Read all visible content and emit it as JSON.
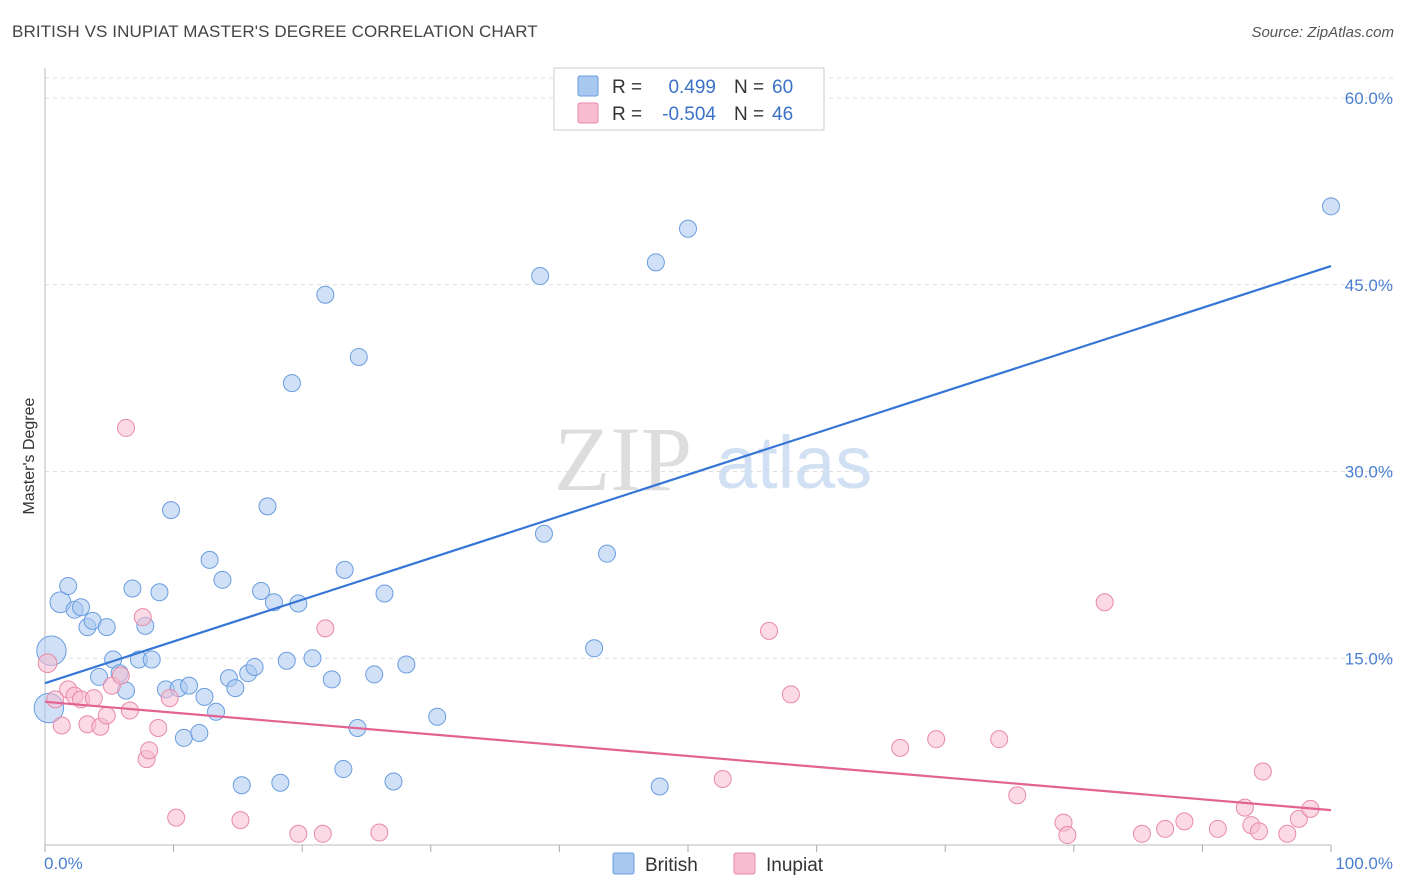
{
  "header": {
    "title": "BRITISH VS INUPIAT MASTER'S DEGREE CORRELATION CHART",
    "source": "Source: ZipAtlas.com"
  },
  "watermark": {
    "zip": "ZIP",
    "atlas": "atlas"
  },
  "colors": {
    "british_fill": "#a9c8f0",
    "british_stroke": "#6a9de0",
    "british_line": "#3676d6",
    "inupiat_fill": "#f7bcd0",
    "inupiat_stroke": "#e88aa8",
    "inupiat_line": "#e26393",
    "axis_label": "#4a7fd0",
    "grid": "#dddddd"
  },
  "legend": {
    "rows": [
      {
        "r_label": "R =",
        "r_value": "0.499",
        "n_label": "N =",
        "n_value": "60"
      },
      {
        "r_label": "R =",
        "r_value": "-0.504",
        "n_label": "N =",
        "n_value": "46"
      }
    ]
  },
  "chart_data": {
    "type": "scatter",
    "title": "BRITISH VS INUPIAT MASTER'S DEGREE CORRELATION CHART",
    "xlabel": "",
    "ylabel": "Master's Degree",
    "xlim": [
      0,
      100
    ],
    "ylim": [
      0,
      60
    ],
    "x_tick_labels": [
      "0.0%",
      "100.0%"
    ],
    "y_ticks": [
      15,
      30,
      45,
      60
    ],
    "y_tick_labels": [
      "15.0%",
      "30.0%",
      "45.0%",
      "60.0%"
    ],
    "grid": true,
    "legend_position": "top-center",
    "series": [
      {
        "name": "British",
        "r": 0.499,
        "n": 60,
        "trend": {
          "x": [
            0,
            100
          ],
          "y": [
            13.0,
            46.5
          ]
        },
        "points": [
          {
            "x": 0.5,
            "y": 15.6,
            "s": 3
          },
          {
            "x": 0.3,
            "y": 11.0,
            "s": 3
          },
          {
            "x": 1.2,
            "y": 19.5,
            "s": 1.5
          },
          {
            "x": 1.8,
            "y": 20.8,
            "s": 1
          },
          {
            "x": 2.3,
            "y": 18.9,
            "s": 1
          },
          {
            "x": 2.8,
            "y": 19.1,
            "s": 1
          },
          {
            "x": 3.3,
            "y": 17.5,
            "s": 1
          },
          {
            "x": 3.7,
            "y": 18.0,
            "s": 1
          },
          {
            "x": 4.2,
            "y": 13.5,
            "s": 1
          },
          {
            "x": 4.8,
            "y": 17.5,
            "s": 1
          },
          {
            "x": 5.3,
            "y": 14.9,
            "s": 1
          },
          {
            "x": 5.8,
            "y": 13.8,
            "s": 1
          },
          {
            "x": 6.3,
            "y": 12.4,
            "s": 1
          },
          {
            "x": 6.8,
            "y": 20.6,
            "s": 1
          },
          {
            "x": 7.3,
            "y": 14.9,
            "s": 1
          },
          {
            "x": 7.8,
            "y": 17.6,
            "s": 1
          },
          {
            "x": 8.3,
            "y": 14.9,
            "s": 1
          },
          {
            "x": 8.9,
            "y": 20.3,
            "s": 1
          },
          {
            "x": 9.4,
            "y": 12.5,
            "s": 1
          },
          {
            "x": 9.8,
            "y": 26.9,
            "s": 1
          },
          {
            "x": 10.4,
            "y": 12.6,
            "s": 1
          },
          {
            "x": 10.8,
            "y": 8.6,
            "s": 1
          },
          {
            "x": 11.2,
            "y": 12.8,
            "s": 1
          },
          {
            "x": 12.0,
            "y": 9.0,
            "s": 1
          },
          {
            "x": 12.4,
            "y": 11.9,
            "s": 1
          },
          {
            "x": 12.8,
            "y": 22.9,
            "s": 1
          },
          {
            "x": 13.3,
            "y": 10.7,
            "s": 1
          },
          {
            "x": 13.8,
            "y": 21.3,
            "s": 1
          },
          {
            "x": 14.3,
            "y": 13.4,
            "s": 1
          },
          {
            "x": 14.8,
            "y": 12.6,
            "s": 1
          },
          {
            "x": 15.3,
            "y": 4.8,
            "s": 1
          },
          {
            "x": 15.8,
            "y": 13.8,
            "s": 1
          },
          {
            "x": 16.3,
            "y": 14.3,
            "s": 1
          },
          {
            "x": 16.8,
            "y": 20.4,
            "s": 1
          },
          {
            "x": 17.3,
            "y": 27.2,
            "s": 1
          },
          {
            "x": 17.8,
            "y": 19.5,
            "s": 1
          },
          {
            "x": 18.3,
            "y": 5.0,
            "s": 1
          },
          {
            "x": 18.8,
            "y": 14.8,
            "s": 1
          },
          {
            "x": 19.2,
            "y": 37.1,
            "s": 1
          },
          {
            "x": 19.7,
            "y": 19.4,
            "s": 1
          },
          {
            "x": 20.8,
            "y": 15.0,
            "s": 1
          },
          {
            "x": 21.8,
            "y": 44.2,
            "s": 1
          },
          {
            "x": 22.3,
            "y": 13.3,
            "s": 1
          },
          {
            "x": 23.2,
            "y": 6.1,
            "s": 1
          },
          {
            "x": 23.3,
            "y": 22.1,
            "s": 1
          },
          {
            "x": 24.3,
            "y": 9.4,
            "s": 1
          },
          {
            "x": 24.4,
            "y": 39.2,
            "s": 1
          },
          {
            "x": 25.6,
            "y": 13.7,
            "s": 1
          },
          {
            "x": 26.4,
            "y": 20.2,
            "s": 1
          },
          {
            "x": 27.1,
            "y": 5.1,
            "s": 1
          },
          {
            "x": 28.1,
            "y": 14.5,
            "s": 1
          },
          {
            "x": 30.5,
            "y": 10.3,
            "s": 1
          },
          {
            "x": 38.5,
            "y": 45.7,
            "s": 1
          },
          {
            "x": 38.8,
            "y": 25.0,
            "s": 1
          },
          {
            "x": 42.7,
            "y": 15.8,
            "s": 1
          },
          {
            "x": 43.7,
            "y": 23.4,
            "s": 1
          },
          {
            "x": 47.5,
            "y": 46.8,
            "s": 1
          },
          {
            "x": 47.8,
            "y": 4.7,
            "s": 1
          },
          {
            "x": 50.0,
            "y": 49.5,
            "s": 1
          },
          {
            "x": 100.0,
            "y": 51.3,
            "s": 1
          }
        ]
      },
      {
        "name": "Inupiat",
        "r": -0.504,
        "n": 46,
        "trend": {
          "x": [
            0,
            100
          ],
          "y": [
            11.5,
            2.8
          ]
        },
        "points": [
          {
            "x": 0.2,
            "y": 14.6,
            "s": 1.2
          },
          {
            "x": 0.8,
            "y": 11.7,
            "s": 1
          },
          {
            "x": 1.3,
            "y": 9.6,
            "s": 1
          },
          {
            "x": 1.8,
            "y": 12.5,
            "s": 1
          },
          {
            "x": 2.3,
            "y": 12.0,
            "s": 1
          },
          {
            "x": 2.8,
            "y": 11.7,
            "s": 1
          },
          {
            "x": 3.3,
            "y": 9.7,
            "s": 1
          },
          {
            "x": 3.8,
            "y": 11.8,
            "s": 1
          },
          {
            "x": 4.3,
            "y": 9.5,
            "s": 1
          },
          {
            "x": 4.8,
            "y": 10.4,
            "s": 1
          },
          {
            "x": 5.2,
            "y": 12.8,
            "s": 1
          },
          {
            "x": 5.9,
            "y": 13.6,
            "s": 1
          },
          {
            "x": 6.3,
            "y": 33.5,
            "s": 1
          },
          {
            "x": 6.6,
            "y": 10.8,
            "s": 1
          },
          {
            "x": 7.6,
            "y": 18.3,
            "s": 1
          },
          {
            "x": 7.9,
            "y": 6.9,
            "s": 1
          },
          {
            "x": 8.1,
            "y": 7.6,
            "s": 1
          },
          {
            "x": 8.8,
            "y": 9.4,
            "s": 1
          },
          {
            "x": 9.7,
            "y": 11.8,
            "s": 1
          },
          {
            "x": 10.2,
            "y": 2.2,
            "s": 1
          },
          {
            "x": 15.2,
            "y": 2.0,
            "s": 1
          },
          {
            "x": 19.7,
            "y": 0.9,
            "s": 1
          },
          {
            "x": 21.6,
            "y": 0.9,
            "s": 1
          },
          {
            "x": 21.8,
            "y": 17.4,
            "s": 1
          },
          {
            "x": 26.0,
            "y": 1.0,
            "s": 1
          },
          {
            "x": 52.7,
            "y": 5.3,
            "s": 1
          },
          {
            "x": 56.3,
            "y": 17.2,
            "s": 1
          },
          {
            "x": 58.0,
            "y": 12.1,
            "s": 1
          },
          {
            "x": 66.5,
            "y": 7.8,
            "s": 1
          },
          {
            "x": 69.3,
            "y": 8.5,
            "s": 1
          },
          {
            "x": 74.2,
            "y": 8.5,
            "s": 1
          },
          {
            "x": 75.6,
            "y": 4.0,
            "s": 1
          },
          {
            "x": 79.2,
            "y": 1.8,
            "s": 1
          },
          {
            "x": 79.5,
            "y": 0.8,
            "s": 1
          },
          {
            "x": 82.4,
            "y": 19.5,
            "s": 1
          },
          {
            "x": 85.3,
            "y": 0.9,
            "s": 1
          },
          {
            "x": 87.1,
            "y": 1.3,
            "s": 1
          },
          {
            "x": 88.6,
            "y": 1.9,
            "s": 1
          },
          {
            "x": 91.2,
            "y": 1.3,
            "s": 1
          },
          {
            "x": 93.3,
            "y": 3.0,
            "s": 1
          },
          {
            "x": 93.8,
            "y": 1.6,
            "s": 1
          },
          {
            "x": 94.4,
            "y": 1.1,
            "s": 1
          },
          {
            "x": 94.7,
            "y": 5.9,
            "s": 1
          },
          {
            "x": 96.6,
            "y": 0.9,
            "s": 1
          },
          {
            "x": 97.5,
            "y": 2.1,
            "s": 1
          },
          {
            "x": 98.4,
            "y": 2.9,
            "s": 1
          }
        ]
      }
    ]
  }
}
